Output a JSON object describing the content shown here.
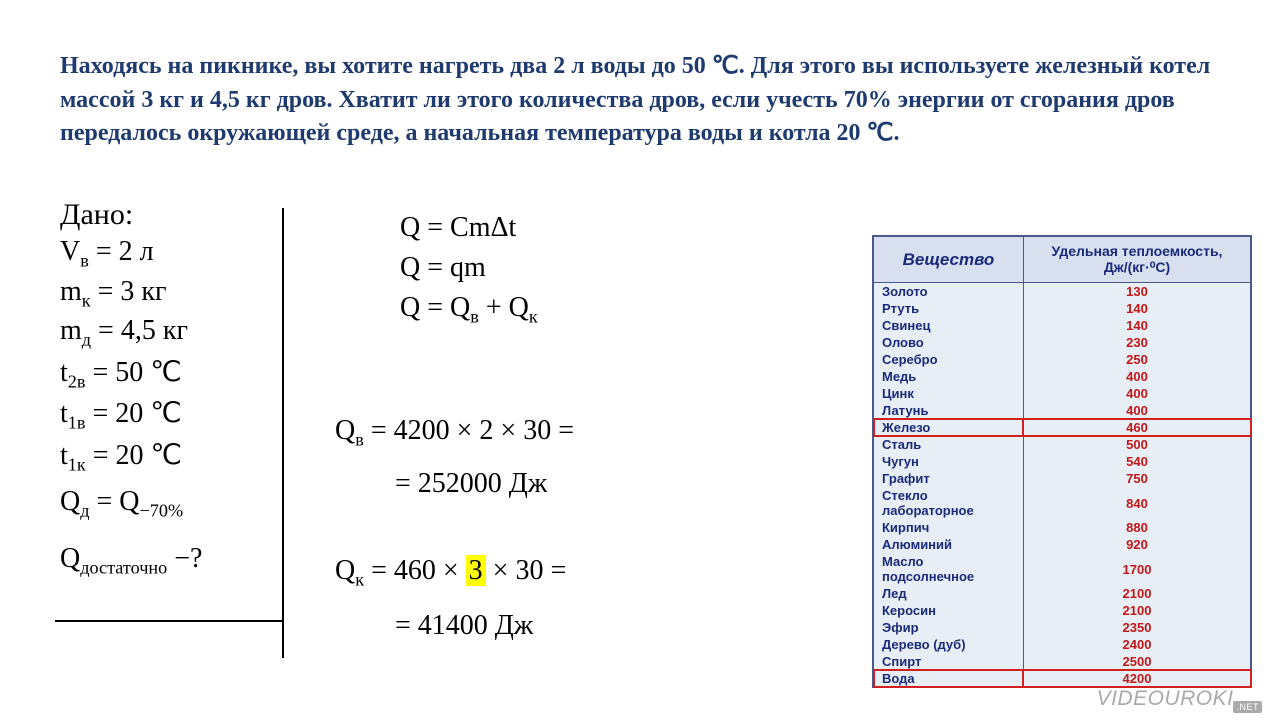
{
  "problem": "Находясь на пикнике, вы хотите нагреть два 2 л воды до 50 ℃. Для этого вы используете железный котел массой 3 кг и 4,5 кг дров. Хватит ли этого количества дров, если учесть 70% энергии от сгорания дров передалось окружающей среде, а начальная температура воды и котла 20 ℃.",
  "given": {
    "title": "Дано:",
    "lines": [
      "Vв = 2 л",
      "mк = 3 кг",
      "mд = 4,5 кг",
      "t2в = 50 ℃",
      "t1в = 20 ℃",
      "t1к = 20 ℃",
      "Qд = Q−70%"
    ],
    "question": "Qдостаточно −?"
  },
  "formulas": {
    "f1": "Q = CmΔt",
    "f2": "Q = qm",
    "f3": "Qв + Qк"
  },
  "calc": {
    "qv_line1": "Qв = 4200 × 2 × 30 =",
    "qv_line2": "= 252000 Дж",
    "qk_pre": "Qк = 460 × ",
    "qk_hl": "3",
    "qk_post": " × 30 =",
    "qk_line2": "= 41400 Дж"
  },
  "table": {
    "headers": [
      "Вещество",
      "Удельная теплоемкость, Дж/(кг·⁰С)"
    ],
    "rows": [
      {
        "name": "Золото",
        "val": "130",
        "hl": false
      },
      {
        "name": "Ртуть",
        "val": "140",
        "hl": false
      },
      {
        "name": "Свинец",
        "val": "140",
        "hl": false
      },
      {
        "name": "Олово",
        "val": "230",
        "hl": false
      },
      {
        "name": "Серебро",
        "val": "250",
        "hl": false
      },
      {
        "name": "Медь",
        "val": "400",
        "hl": false
      },
      {
        "name": "Цинк",
        "val": "400",
        "hl": false
      },
      {
        "name": "Латунь",
        "val": "400",
        "hl": false
      },
      {
        "name": "Железо",
        "val": "460",
        "hl": true
      },
      {
        "name": "Сталь",
        "val": "500",
        "hl": false
      },
      {
        "name": "Чугун",
        "val": "540",
        "hl": false
      },
      {
        "name": "Графит",
        "val": "750",
        "hl": false
      },
      {
        "name": "Стекло лабораторное",
        "val": "840",
        "hl": false
      },
      {
        "name": "Кирпич",
        "val": "880",
        "hl": false
      },
      {
        "name": "Алюминий",
        "val": "920",
        "hl": false
      },
      {
        "name": "Масло подсолнечное",
        "val": "1700",
        "hl": false
      },
      {
        "name": "Лед",
        "val": "2100",
        "hl": false
      },
      {
        "name": "Керосин",
        "val": "2100",
        "hl": false
      },
      {
        "name": "Эфир",
        "val": "2350",
        "hl": false
      },
      {
        "name": "Дерево (дуб)",
        "val": "2400",
        "hl": false
      },
      {
        "name": "Спирт",
        "val": "2500",
        "hl": false
      },
      {
        "name": "Вода",
        "val": "4200",
        "hl": true
      }
    ]
  },
  "watermark": {
    "text": "VIDEOUROKI",
    "suffix": ".NET"
  },
  "colors": {
    "problem_text": "#1f3a6e",
    "table_header_bg": "#d8e0f0",
    "table_text": "#1a2a7a",
    "table_val": "#c01818",
    "highlight_bg": "#ffff00",
    "row_outline": "#d02020"
  }
}
